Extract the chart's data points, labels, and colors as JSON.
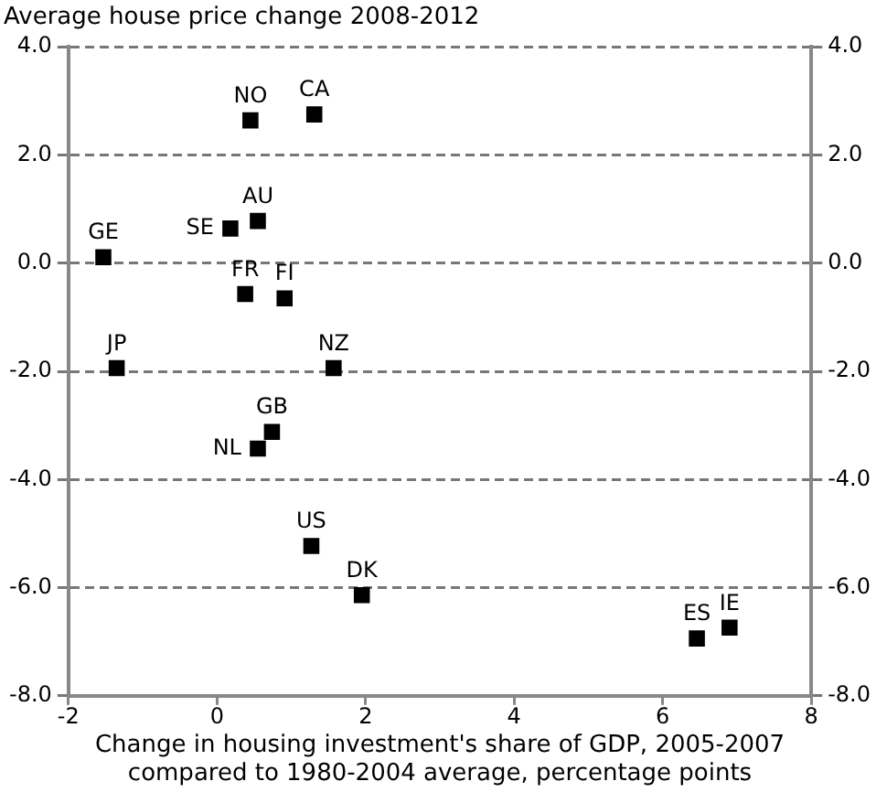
{
  "chart_data": {
    "type": "scatter",
    "title": "Average house price change 2008-2012",
    "xlabel": "Change in housing investment's share of GDP, 2005-2007\ncompared to 1980-2004 average, percentage points",
    "series": [
      {
        "color": "#000000",
        "x": [
          0.45,
          1.31,
          0.55,
          0.18,
          -1.53,
          0.38,
          0.91,
          -1.35,
          1.57,
          0.74,
          0.55,
          1.27,
          1.95,
          6.9,
          6.46
        ],
        "values": [
          2.64,
          2.75,
          0.78,
          0.64,
          0.11,
          -0.57,
          -0.65,
          -1.94,
          -1.94,
          -3.12,
          -3.43,
          -5.23,
          -6.14,
          -6.74,
          -6.94
        ]
      }
    ],
    "annotations": [
      {
        "text": "NO",
        "x": 0.45,
        "y": 2.64
      },
      {
        "text": "CA",
        "x": 1.31,
        "y": 2.75
      },
      {
        "text": "AU",
        "x": 0.55,
        "y": 0.78
      },
      {
        "text": "SE",
        "x": 0.18,
        "y": 0.64
      },
      {
        "text": "GE",
        "x": -1.53,
        "y": 0.11
      },
      {
        "text": "FR",
        "x": 0.38,
        "y": -0.57
      },
      {
        "text": "FI",
        "x": 0.91,
        "y": -0.65
      },
      {
        "text": "JP",
        "x": -1.35,
        "y": -1.94
      },
      {
        "text": "NZ",
        "x": 1.57,
        "y": -1.94
      },
      {
        "text": "GB",
        "x": 0.74,
        "y": -3.12
      },
      {
        "text": "NL",
        "x": 0.55,
        "y": -3.43
      },
      {
        "text": "US",
        "x": 1.27,
        "y": -5.23
      },
      {
        "text": "DK",
        "x": 1.95,
        "y": -6.14
      },
      {
        "text": "IE",
        "x": 6.9,
        "y": -6.74
      },
      {
        "text": "ES",
        "x": 6.46,
        "y": -6.94
      }
    ],
    "xlim": [
      -2,
      8
    ],
    "xticks": [
      -2,
      0,
      2,
      4,
      6,
      8
    ],
    "ylim": [
      -8,
      4
    ],
    "yticks": [
      {
        "value": -8,
        "label": "-8.0"
      },
      {
        "value": -6,
        "label": "-6.0"
      },
      {
        "value": -4,
        "label": "-4.0"
      },
      {
        "value": -2,
        "label": "-2.0"
      },
      {
        "value": 0,
        "label": "0.0"
      },
      {
        "value": 2,
        "label": "2.0"
      },
      {
        "value": 4,
        "label": "4.0"
      }
    ],
    "y2lim": [
      -8,
      4
    ],
    "y2ticks": [
      {
        "value": -8,
        "label": "-8.0"
      },
      {
        "value": -6,
        "label": "-6.0"
      },
      {
        "value": -4,
        "label": "-4.0"
      },
      {
        "value": -2,
        "label": "-2.0"
      },
      {
        "value": 0,
        "label": "0.0"
      },
      {
        "value": 2,
        "label": "2.0"
      },
      {
        "value": 4,
        "label": "4.0"
      }
    ],
    "grid": "y",
    "marker": "square",
    "legend": false
  }
}
